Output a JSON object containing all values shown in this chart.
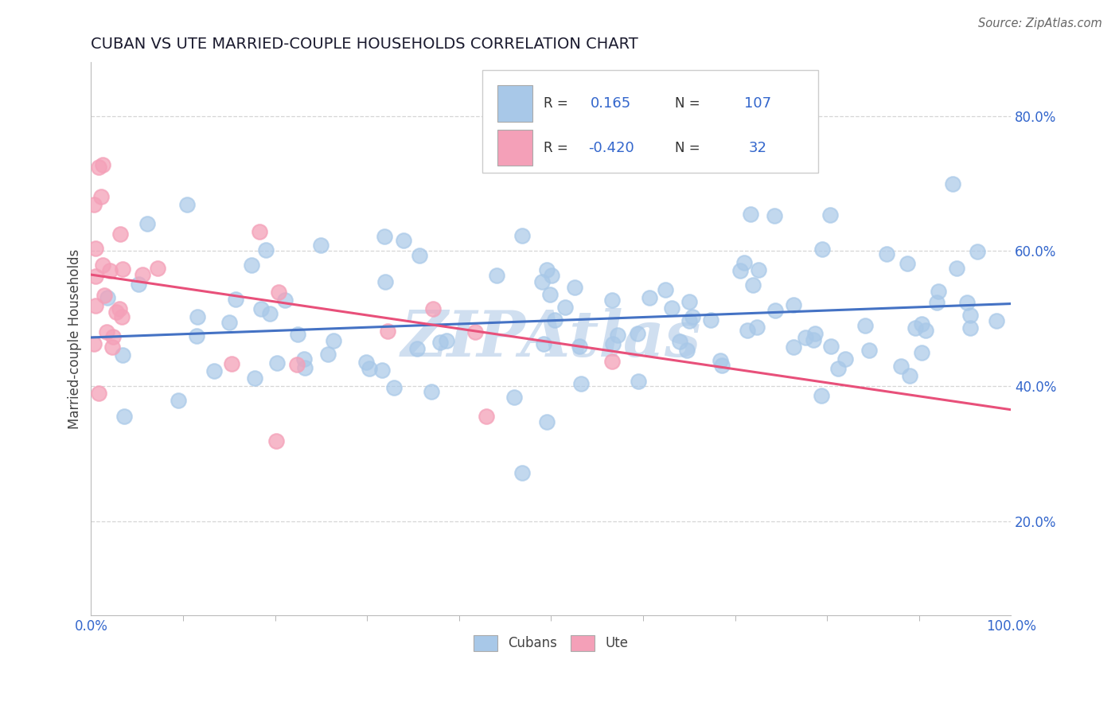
{
  "title": "CUBAN VS UTE MARRIED-COUPLE HOUSEHOLDS CORRELATION CHART",
  "source": "Source: ZipAtlas.com",
  "ylabel": "Married-couple Households",
  "xlim": [
    0.0,
    1.0
  ],
  "ylim": [
    0.06,
    0.88
  ],
  "ytick_vals": [
    0.2,
    0.4,
    0.6,
    0.8
  ],
  "ytick_labels": [
    "20.0%",
    "40.0%",
    "60.0%",
    "80.0%"
  ],
  "blue_R": 0.165,
  "blue_N": 107,
  "pink_R": -0.42,
  "pink_N": 32,
  "blue_color": "#a8c8e8",
  "pink_color": "#f4a0b8",
  "blue_line_color": "#4472c4",
  "pink_line_color": "#e8507a",
  "title_color": "#1a1a2e",
  "axis_color": "#3366cc",
  "watermark_color": "#d0dff0",
  "grid_color": "#cccccc",
  "background_color": "#ffffff",
  "blue_trend_y0": 0.472,
  "blue_trend_y1": 0.522,
  "pink_trend_y0": 0.565,
  "pink_trend_y1": 0.365,
  "seed": 12345
}
